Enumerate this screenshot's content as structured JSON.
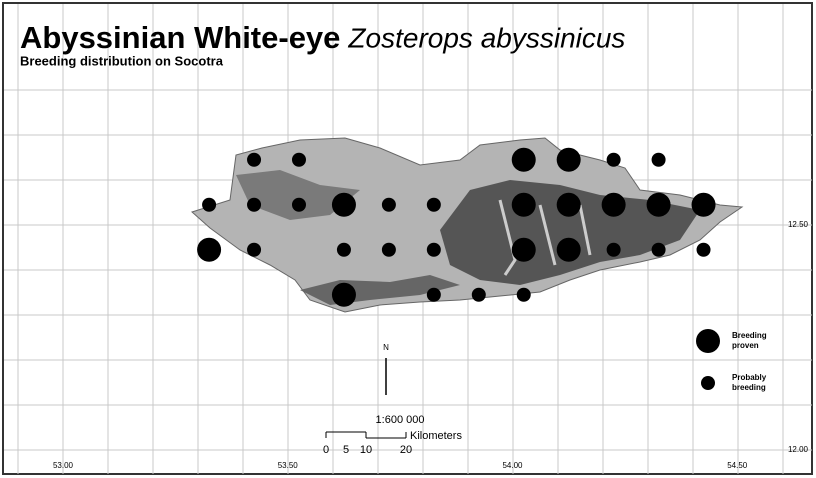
{
  "title": "Abyssinian White-eye",
  "species": "Zosterops abyssinicus",
  "subtitle": "Breeding distribution on Socotra",
  "x_ticks": [
    {
      "value": 53.0,
      "label": "53.00"
    },
    {
      "value": 53.5,
      "label": "53.50"
    },
    {
      "value": 54.0,
      "label": "54.00"
    },
    {
      "value": 54.5,
      "label": "54.50"
    }
  ],
  "y_ticks": [
    {
      "value": 12.5,
      "label": "12.50"
    },
    {
      "value": 12.0,
      "label": "12.00"
    }
  ],
  "legend": [
    {
      "label": "Breeding proven",
      "points": [
        [
          54.025,
          12.645
        ],
        [
          54.125,
          12.645
        ],
        [
          53.625,
          12.545
        ],
        [
          54.025,
          12.545
        ],
        [
          54.125,
          12.545
        ],
        [
          54.225,
          12.545
        ],
        [
          54.325,
          12.545
        ],
        [
          54.425,
          12.545
        ],
        [
          53.325,
          12.445
        ],
        [
          54.025,
          12.445
        ],
        [
          54.125,
          12.445
        ],
        [
          53.625,
          12.345
        ]
      ]
    },
    {
      "label": "Probably breeding",
      "points": [
        [
          53.425,
          12.645
        ],
        [
          53.525,
          12.645
        ],
        [
          54.225,
          12.645
        ],
        [
          54.325,
          12.645
        ],
        [
          53.325,
          12.545
        ],
        [
          53.425,
          12.545
        ],
        [
          53.525,
          12.545
        ],
        [
          53.725,
          12.545
        ],
        [
          53.825,
          12.545
        ],
        [
          53.425,
          12.445
        ],
        [
          53.625,
          12.445
        ],
        [
          53.725,
          12.445
        ],
        [
          53.825,
          12.445
        ],
        [
          54.225,
          12.445
        ],
        [
          54.325,
          12.445
        ],
        [
          54.425,
          12.445
        ],
        [
          53.825,
          12.345
        ],
        [
          53.925,
          12.345
        ],
        [
          54.025,
          12.345
        ]
      ]
    }
  ],
  "north": "N",
  "scale": "1:600 000",
  "scale_ticks": [
    "0",
    "5",
    "10",
    "20"
  ],
  "scale_unit": "Kilometers"
}
